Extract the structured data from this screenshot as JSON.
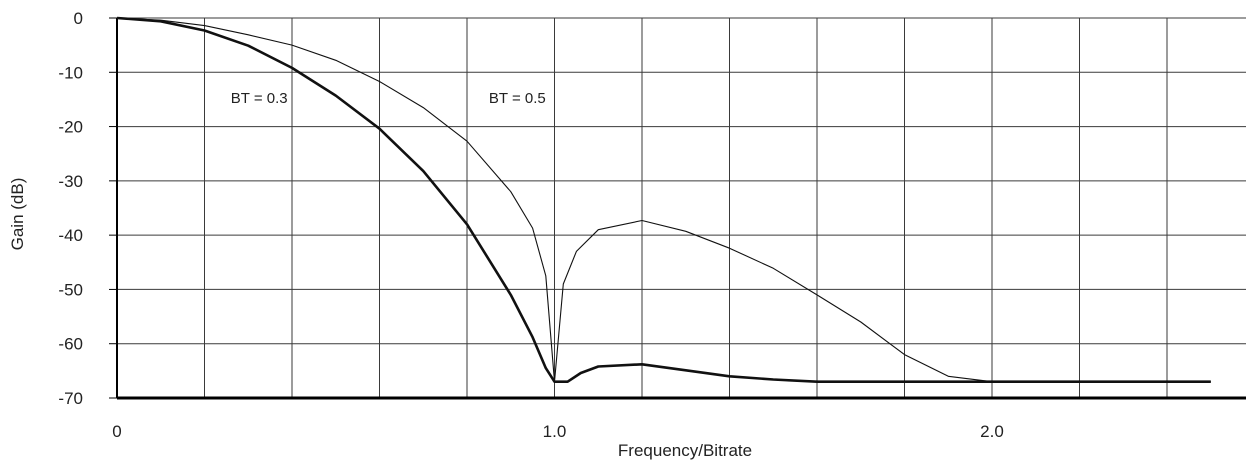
{
  "chart_data": {
    "type": "line",
    "title": "",
    "xlabel": "Frequency/Bitrate",
    "ylabel": "Gain (dB)",
    "xlim": [
      0,
      2.5
    ],
    "ylim": [
      -70,
      0
    ],
    "grid": true,
    "x_ticks": [
      {
        "value": 0,
        "label": "0"
      },
      {
        "value": 1.0,
        "label": "1.0"
      },
      {
        "value": 2.0,
        "label": "2.0"
      }
    ],
    "y_ticks": [
      {
        "value": 0,
        "label": "0"
      },
      {
        "value": -10,
        "label": "-10"
      },
      {
        "value": -20,
        "label": "-20"
      },
      {
        "value": -30,
        "label": "-30"
      },
      {
        "value": -40,
        "label": "-40"
      },
      {
        "value": -50,
        "label": "-50"
      },
      {
        "value": -60,
        "label": "-60"
      },
      {
        "value": -70,
        "label": "-70"
      }
    ],
    "x_gridlines": [
      0.2,
      0.4,
      0.6,
      0.8,
      1.0,
      1.2,
      1.4,
      1.6,
      1.8,
      2.0,
      2.2,
      2.4
    ],
    "series": [
      {
        "id": "bt03",
        "stroke": "#111111",
        "points": [
          [
            0,
            0
          ],
          [
            0.1,
            -0.6
          ],
          [
            0.2,
            -2.3
          ],
          [
            0.3,
            -5.1
          ],
          [
            0.4,
            -9.2
          ],
          [
            0.5,
            -14.3
          ],
          [
            0.6,
            -20.4
          ],
          [
            0.7,
            -28.2
          ],
          [
            0.8,
            -38.0
          ],
          [
            0.9,
            -51.0
          ],
          [
            0.95,
            -58.8
          ],
          [
            0.98,
            -64.5
          ],
          [
            1.0,
            -67.0
          ],
          [
            1.03,
            -67.0
          ],
          [
            1.06,
            -65.4
          ],
          [
            1.1,
            -64.2
          ],
          [
            1.2,
            -63.8
          ],
          [
            1.3,
            -64.9
          ],
          [
            1.4,
            -66.0
          ],
          [
            1.5,
            -66.6
          ],
          [
            1.6,
            -67.0
          ],
          [
            1.7,
            -67.0
          ],
          [
            2.0,
            -67.0
          ],
          [
            2.5,
            -67.0
          ]
        ]
      },
      {
        "id": "bt05",
        "stroke": "#111111",
        "points": [
          [
            0,
            0
          ],
          [
            0.1,
            -0.4
          ],
          [
            0.2,
            -1.4
          ],
          [
            0.3,
            -3.1
          ],
          [
            0.4,
            -5.0
          ],
          [
            0.5,
            -7.8
          ],
          [
            0.6,
            -11.7
          ],
          [
            0.7,
            -16.5
          ],
          [
            0.8,
            -22.7
          ],
          [
            0.9,
            -32.0
          ],
          [
            0.95,
            -38.7
          ],
          [
            0.98,
            -47.5
          ],
          [
            1.0,
            -67.0
          ],
          [
            1.02,
            -49.0
          ],
          [
            1.05,
            -43.0
          ],
          [
            1.1,
            -39.0
          ],
          [
            1.2,
            -37.3
          ],
          [
            1.3,
            -39.3
          ],
          [
            1.4,
            -42.4
          ],
          [
            1.5,
            -46.1
          ],
          [
            1.6,
            -51.0
          ],
          [
            1.7,
            -56.0
          ],
          [
            1.8,
            -62.0
          ],
          [
            1.9,
            -66.0
          ],
          [
            2.0,
            -67.0
          ],
          [
            2.5,
            -67.0
          ]
        ]
      }
    ],
    "annotations": [
      {
        "text": "BT   =   0.3",
        "x": 0.39,
        "y": -15.7
      },
      {
        "text": "BT   =   0.5",
        "x": 0.98,
        "y": -15.7
      }
    ]
  }
}
